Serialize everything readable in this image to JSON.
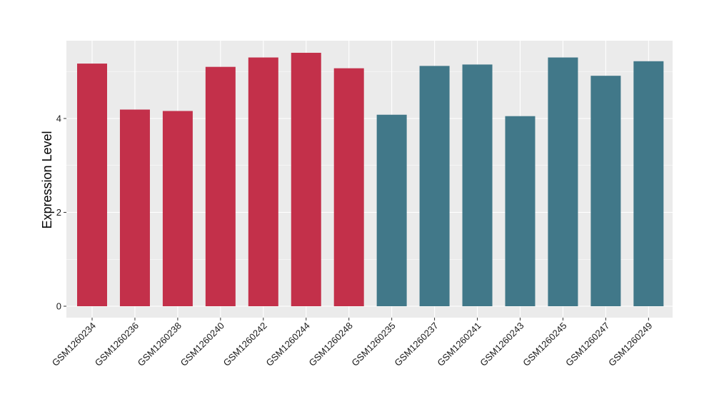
{
  "chart_data": {
    "type": "bar",
    "title": "",
    "xlabel": "",
    "ylabel": "Expression Level",
    "ylim": [
      0,
      5.75
    ],
    "yticks": [
      0,
      2,
      4
    ],
    "grid": true,
    "legend": "none",
    "categories": [
      "GSM1260234",
      "GSM1260236",
      "GSM1260238",
      "GSM1260240",
      "GSM1260242",
      "GSM1260244",
      "GSM1260248",
      "GSM1260235",
      "GSM1260237",
      "GSM1260241",
      "GSM1260243",
      "GSM1260245",
      "GSM1260247",
      "GSM1260249"
    ],
    "values": [
      5.17,
      4.19,
      4.16,
      5.1,
      5.3,
      5.4,
      5.07,
      4.08,
      5.12,
      5.15,
      4.05,
      5.3,
      4.91,
      5.22
    ],
    "group_colors": [
      "#c3304a",
      "#c3304a",
      "#c3304a",
      "#c3304a",
      "#c3304a",
      "#c3304a",
      "#c3304a",
      "#417889",
      "#417889",
      "#417889",
      "#417889",
      "#417889",
      "#417889",
      "#417889"
    ],
    "panel_background": "#ebebeb",
    "gridline_color": "#ffffff"
  }
}
